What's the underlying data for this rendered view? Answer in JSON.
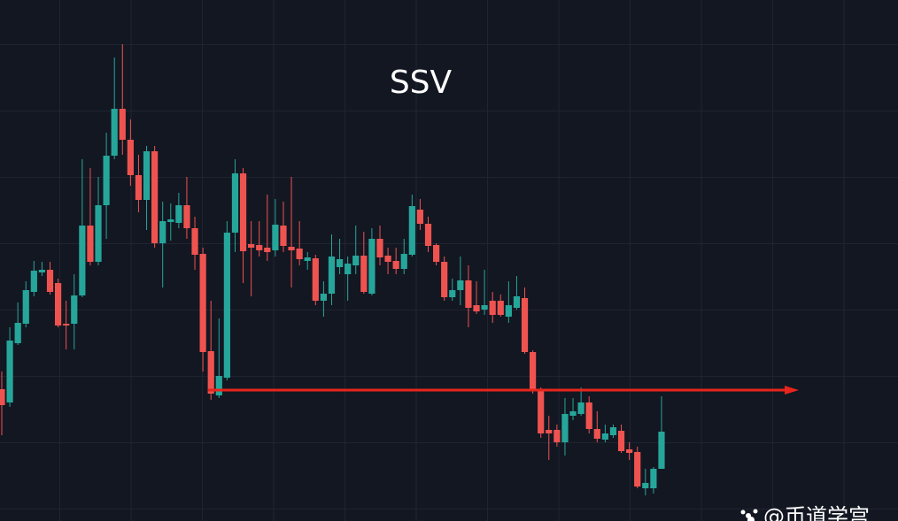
{
  "chart_data": {
    "type": "candlestick",
    "title": "SSV",
    "watermark": "@币道学宫",
    "up_color": "#26a69a",
    "down_color": "#ef5350",
    "line_color": "#e8251c",
    "ylim": [
      0,
      589
    ],
    "open": [
      149,
      134,
      201,
      223,
      259,
      281,
      284,
      269,
      223,
      223,
      255,
      334,
      293,
      357,
      413,
      466,
      431,
      391,
      363,
      418,
      314,
      338,
      337,
      357,
      331,
      302,
      192,
      142,
      162,
      326,
      393,
      313,
      312,
      309,
      306,
      334,
      310,
      308,
      294,
      297,
      249,
      257,
      287,
      279,
      289,
      300,
      257,
      319,
      300,
      294,
      285,
      301,
      352,
      336,
      312,
      293,
      253,
      261,
      272,
      244,
      239,
      249,
      249,
      231,
      241,
      252,
      191,
      149,
      103,
      103,
      89,
      119,
      121,
      134,
      104,
      92,
      97,
      102,
      81,
      78,
      37,
      37,
      59
    ],
    "high": [
      169,
      219,
      247,
      271,
      294,
      293,
      293,
      274,
      249,
      279,
      409,
      399,
      389,
      439,
      524,
      539,
      454,
      414,
      424,
      424,
      361,
      359,
      371,
      389,
      344,
      309,
      249,
      229,
      339,
      409,
      399,
      339,
      339,
      369,
      364,
      361,
      389,
      339,
      304,
      301,
      271,
      324,
      319,
      299,
      334,
      327,
      331,
      334,
      309,
      309,
      319,
      369,
      364,
      344,
      314,
      299,
      274,
      299,
      289,
      271,
      284,
      259,
      256,
      271,
      277,
      264,
      193,
      151,
      119,
      109,
      139,
      139,
      151,
      141,
      124,
      109,
      109,
      109,
      89,
      84,
      59,
      61,
      141
    ],
    "low": [
      97,
      129,
      199,
      219,
      254,
      277,
      256,
      219,
      194,
      194,
      253,
      289,
      289,
      319,
      409,
      414,
      379,
      349,
      329,
      309,
      264,
      317,
      331,
      319,
      284,
      169,
      137,
      139,
      159,
      304,
      269,
      254,
      299,
      294,
      299,
      304,
      264,
      289,
      284,
      244,
      231,
      244,
      279,
      249,
      279,
      257,
      255,
      289,
      279,
      279,
      279,
      299,
      329,
      304,
      289,
      249,
      249,
      244,
      219,
      234,
      233,
      224,
      231,
      224,
      239,
      189,
      144,
      94,
      69,
      84,
      74,
      114,
      119,
      99,
      89,
      89,
      94,
      77,
      69,
      37,
      29,
      31,
      59
    ],
    "close": [
      131,
      204,
      224,
      261,
      283,
      284,
      259,
      221,
      221,
      255,
      334,
      293,
      357,
      413,
      466,
      431,
      391,
      363,
      418,
      314,
      339,
      341,
      357,
      331,
      301,
      191,
      144,
      164,
      326,
      393,
      305,
      309,
      306,
      304,
      335,
      311,
      306,
      296,
      298,
      249,
      257,
      299,
      296,
      291,
      300,
      259,
      319,
      298,
      293,
      285,
      302,
      356,
      336,
      311,
      293,
      253,
      261,
      272,
      241,
      237,
      244,
      233,
      233,
      244,
      254,
      191,
      149,
      99,
      99,
      89,
      121,
      124,
      134,
      104,
      93,
      99,
      106,
      79,
      77,
      39,
      43,
      59,
      101
    ],
    "support_level": 148
  }
}
